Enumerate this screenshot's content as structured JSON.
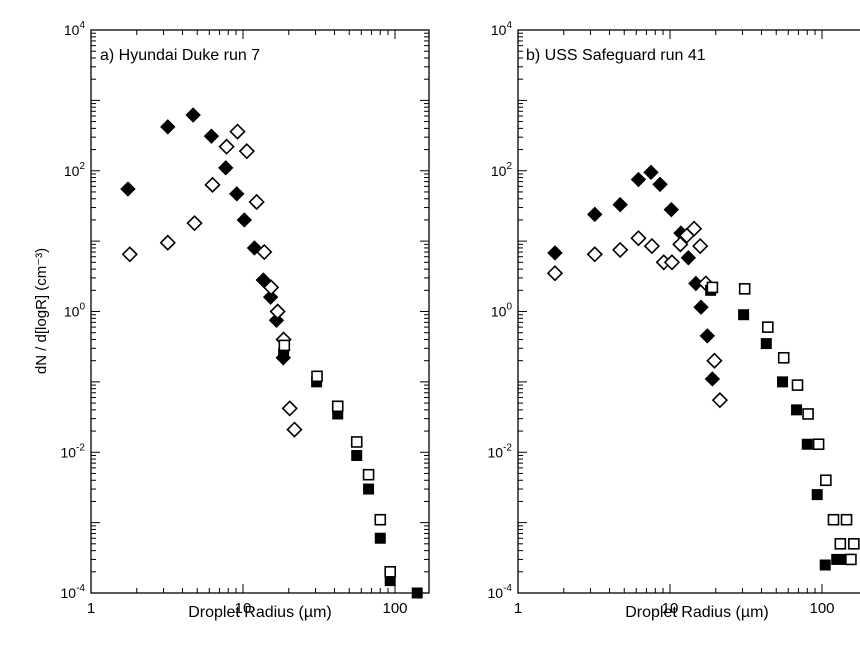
{
  "chart_data": [
    {
      "type": "scatter",
      "title": "a) Hyundai Duke run 7",
      "xlabel": "Droplet Radius (µm)",
      "ylabel": "dN / d[logR]  (cm⁻³)",
      "xscale": "log",
      "yscale": "log",
      "xlim": [
        1,
        200
      ],
      "ylim": [
        0.0001,
        10000
      ],
      "x_ticks": [
        {
          "v": 1,
          "label": "1"
        },
        {
          "v": 10,
          "label": "10"
        },
        {
          "v": 100,
          "label": "100"
        }
      ],
      "y_ticks": [
        {
          "v": 0.0001,
          "label": "10",
          "exp": "-4"
        },
        {
          "v": 0.01,
          "label": "10",
          "exp": "-2"
        },
        {
          "v": 1,
          "label": "10",
          "exp": "0"
        },
        {
          "v": 100,
          "label": "10",
          "exp": "2"
        },
        {
          "v": 10000,
          "label": "10",
          "exp": "4"
        }
      ],
      "grid": false,
      "series": [
        {
          "marker": "filled-diamond",
          "color": "#000000",
          "x": [
            1.75,
            3.2,
            4.7,
            6.2,
            7.7,
            9.1,
            10.2,
            11.9,
            13.6,
            15.2,
            16.6,
            18.4
          ],
          "y": [
            55,
            420,
            620,
            310,
            110,
            47,
            20,
            8.0,
            2.8,
            1.6,
            0.75,
            0.22
          ]
        },
        {
          "marker": "open-diamond",
          "color": "#000000",
          "x": [
            1.8,
            3.2,
            4.8,
            6.3,
            7.8,
            9.2,
            10.6,
            12.3,
            13.8,
            15.3,
            16.9,
            18.5,
            20.3,
            21.8
          ],
          "y": [
            6.5,
            9.5,
            18,
            63,
            220,
            360,
            190,
            36,
            7.0,
            2.2,
            1.0,
            0.4,
            0.042,
            0.021
          ]
        },
        {
          "marker": "filled-square",
          "color": "#000000",
          "x": [
            18.5,
            30.5,
            42,
            56,
            67,
            80,
            93,
            140
          ],
          "y": [
            0.25,
            0.1,
            0.035,
            0.009,
            0.003,
            0.0006,
            0.00015,
            0.0001
          ]
        },
        {
          "marker": "open-square",
          "color": "#000000",
          "x": [
            18.7,
            30.7,
            42,
            56,
            67,
            80,
            93
          ],
          "y": [
            0.33,
            0.12,
            0.045,
            0.014,
            0.0048,
            0.0011,
            0.0002
          ]
        }
      ]
    },
    {
      "type": "scatter",
      "title": "b) USS Safeguard run 41",
      "xlabel": "Droplet Radius (µm)",
      "xscale": "log",
      "yscale": "log",
      "xlim": [
        1,
        200
      ],
      "ylim": [
        0.0001,
        10000
      ],
      "x_ticks": [
        {
          "v": 1,
          "label": "1"
        },
        {
          "v": 10,
          "label": "10"
        },
        {
          "v": 100,
          "label": "100"
        }
      ],
      "y_ticks": [
        {
          "v": 0.0001,
          "label": "10",
          "exp": "-4"
        },
        {
          "v": 0.01,
          "label": "10",
          "exp": "-2"
        },
        {
          "v": 1,
          "label": "10",
          "exp": "0"
        },
        {
          "v": 100,
          "label": "10",
          "exp": "2"
        },
        {
          "v": 10000,
          "label": "10",
          "exp": "4"
        }
      ],
      "grid": false,
      "series": [
        {
          "marker": "filled-diamond",
          "color": "#000000",
          "x": [
            1.75,
            3.2,
            4.7,
            6.2,
            7.5,
            8.6,
            10.2,
            11.8,
            13.2,
            14.8,
            16.0,
            17.6,
            19.0
          ],
          "y": [
            6.8,
            24,
            33,
            75,
            95,
            64,
            28,
            13,
            5.8,
            2.5,
            1.15,
            0.45,
            0.11
          ]
        },
        {
          "marker": "open-diamond",
          "color": "#000000",
          "x": [
            1.75,
            3.2,
            4.7,
            6.2,
            7.6,
            9.1,
            10.3,
            11.7,
            12.9,
            14.4,
            15.8,
            17.2,
            19.6,
            21.3
          ],
          "y": [
            3.5,
            6.5,
            7.5,
            11,
            8.5,
            5.0,
            5.0,
            9.0,
            12,
            15,
            8.5,
            2.5,
            0.2,
            0.055
          ]
        },
        {
          "marker": "filled-square",
          "color": "#000000",
          "x": [
            18.5,
            30.5,
            43,
            55,
            68,
            80,
            93,
            105,
            125,
            140
          ],
          "y": [
            2.0,
            0.9,
            0.35,
            0.1,
            0.04,
            0.013,
            0.0025,
            0.00025,
            0.0003,
            0.0003
          ]
        },
        {
          "marker": "open-square",
          "color": "#000000",
          "x": [
            19,
            31,
            44,
            56,
            69,
            81,
            95,
            106,
            119,
            132,
            145,
            155,
            162
          ],
          "y": [
            2.2,
            2.1,
            0.6,
            0.22,
            0.09,
            0.035,
            0.013,
            0.004,
            0.0011,
            0.0005,
            0.0011,
            0.0003,
            0.0005
          ]
        }
      ]
    }
  ]
}
